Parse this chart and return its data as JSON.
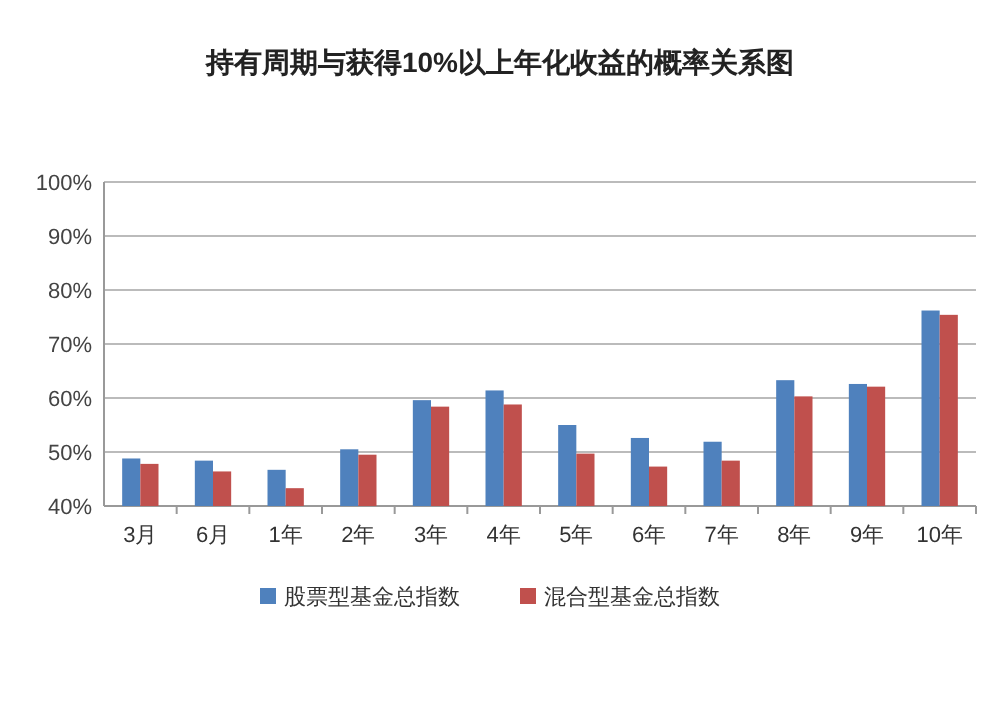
{
  "chart_data": {
    "type": "bar",
    "title": "持有周期与获得10%以上年化收益的概率关系图",
    "categories": [
      "3月",
      "6月",
      "1年",
      "2年",
      "3年",
      "4年",
      "5年",
      "6年",
      "7年",
      "8年",
      "9年",
      "10年"
    ],
    "series": [
      {
        "name": "股票型基金总指数",
        "color": "#4f81bd",
        "values": [
          48.8,
          48.4,
          46.7,
          50.5,
          59.6,
          61.4,
          55,
          52.6,
          51.9,
          63.3,
          62.6,
          76.2
        ]
      },
      {
        "name": "混合型基金总指数",
        "color": "#c0504d",
        "values": [
          47.8,
          46.4,
          43.3,
          49.5,
          58.4,
          58.8,
          49.7,
          47.3,
          48.4,
          60.3,
          62.1,
          75.4
        ]
      }
    ],
    "ylim": [
      40,
      100
    ],
    "yticks": [
      {
        "value": 40,
        "label": "40%"
      },
      {
        "value": 50,
        "label": "50%"
      },
      {
        "value": 60,
        "label": "60%"
      },
      {
        "value": 70,
        "label": "70%"
      },
      {
        "value": 80,
        "label": "80%"
      },
      {
        "value": 90,
        "label": "90%"
      },
      {
        "value": 100,
        "label": "100%"
      }
    ],
    "grid": "y",
    "legend": "bottom"
  }
}
